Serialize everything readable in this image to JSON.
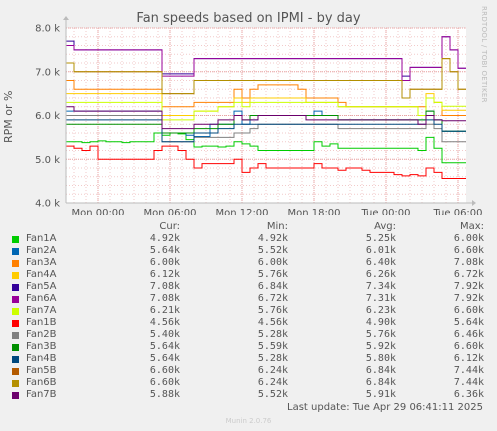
{
  "chart_data": {
    "type": "line",
    "title": "Fan speeds based on IPMI - by day",
    "ylabel": "RPM or %",
    "ylim": [
      4000,
      8000
    ],
    "y_ticks": [
      "4.0 k",
      "5.0 k",
      "6.0 k",
      "7.0 k",
      "8.0 k"
    ],
    "x_ticks": [
      "Mon 00:00",
      "Mon 06:00",
      "Mon 12:00",
      "Mon 18:00",
      "Tue 00:00",
      "Tue 06:00"
    ],
    "watermark": "RRDTOOL / TOBI OETIKER",
    "columns": [
      "Cur:",
      "Min:",
      "Avg:",
      "Max:"
    ],
    "series": [
      {
        "name": "Fan1A",
        "color": "#00cc00",
        "cur": "4.92k",
        "min": "4.92k",
        "avg": "5.25k",
        "max": "6.00k",
        "values": [
          5.4,
          5.4,
          5.38,
          5.4,
          5.42,
          5.4,
          5.4,
          5.38,
          5.4,
          5.4,
          5.4,
          5.6,
          5.55,
          5.6,
          5.58,
          5.45,
          5.28,
          5.3,
          5.3,
          5.28,
          5.3,
          5.4,
          5.35,
          5.3,
          5.2,
          5.2,
          5.2,
          5.2,
          5.2,
          5.2,
          5.2,
          5.4,
          5.3,
          5.35,
          5.25,
          5.25,
          5.25,
          5.25,
          5.25,
          5.25,
          5.25,
          5.25,
          5.25,
          5.25,
          5.2,
          5.5,
          5.25,
          4.92,
          4.92,
          4.92,
          4.92
        ]
      },
      {
        "name": "Fan2A",
        "color": "#0066b3",
        "cur": "5.64k",
        "min": "5.52k",
        "avg": "6.01k",
        "max": "6.60k",
        "values": [
          6.1,
          6.1,
          6.1,
          6.1,
          6.1,
          6.1,
          6.1,
          6.1,
          6.1,
          6.1,
          6.1,
          6.1,
          5.6,
          5.6,
          5.6,
          5.55,
          5.52,
          5.52,
          5.8,
          5.8,
          5.8,
          6.1,
          5.8,
          5.9,
          6.0,
          6.0,
          6.0,
          6.0,
          6.0,
          6.0,
          6.0,
          6.1,
          6.0,
          6.0,
          5.9,
          5.9,
          5.9,
          5.9,
          5.9,
          5.9,
          5.9,
          5.9,
          5.9,
          5.9,
          5.9,
          6.1,
          5.9,
          5.64,
          5.64,
          5.64,
          5.64
        ]
      },
      {
        "name": "Fan3A",
        "color": "#ff8000",
        "cur": "6.00k",
        "min": "6.00k",
        "avg": "6.40k",
        "max": "7.08k",
        "values": [
          6.8,
          6.6,
          6.6,
          6.6,
          6.6,
          6.6,
          6.6,
          6.6,
          6.6,
          6.6,
          6.6,
          6.6,
          6.2,
          6.2,
          6.2,
          6.2,
          6.3,
          6.3,
          6.3,
          6.3,
          6.3,
          6.6,
          6.4,
          6.6,
          6.7,
          6.7,
          6.7,
          6.7,
          6.7,
          6.6,
          6.4,
          6.4,
          6.4,
          6.4,
          6.3,
          6.2,
          6.2,
          6.2,
          6.2,
          6.2,
          6.2,
          6.2,
          6.2,
          6.2,
          6.2,
          6.4,
          6.3,
          6.0,
          6.0,
          6.0,
          6.0
        ]
      },
      {
        "name": "Fan4A",
        "color": "#ffcc00",
        "cur": "6.12k",
        "min": "5.76k",
        "avg": "6.26k",
        "max": "6.72k",
        "values": [
          6.5,
          6.5,
          6.5,
          6.5,
          6.5,
          6.5,
          6.5,
          6.5,
          6.5,
          6.5,
          6.5,
          6.5,
          6.0,
          6.0,
          6.0,
          6.0,
          6.1,
          6.1,
          6.1,
          6.2,
          6.2,
          6.4,
          6.3,
          6.4,
          6.4,
          6.4,
          6.4,
          6.4,
          6.4,
          6.4,
          6.3,
          6.3,
          6.3,
          6.3,
          6.2,
          6.2,
          6.2,
          6.2,
          6.2,
          6.2,
          6.2,
          6.2,
          6.2,
          6.2,
          6.0,
          6.5,
          6.3,
          6.12,
          6.12,
          6.12,
          6.12
        ]
      },
      {
        "name": "Fan5A",
        "color": "#330099",
        "cur": "7.08k",
        "min": "6.84k",
        "avg": "7.34k",
        "max": "7.92k",
        "values": [
          7.7,
          7.5,
          7.5,
          7.5,
          7.5,
          7.5,
          7.5,
          7.5,
          7.5,
          7.5,
          7.5,
          7.5,
          6.95,
          6.95,
          6.95,
          6.95,
          7.3,
          7.3,
          7.3,
          7.3,
          7.3,
          7.3,
          7.3,
          7.3,
          7.3,
          7.3,
          7.3,
          7.3,
          7.3,
          7.3,
          7.3,
          7.3,
          7.3,
          7.3,
          7.3,
          7.3,
          7.3,
          7.3,
          7.3,
          7.3,
          7.3,
          7.3,
          6.9,
          7.1,
          7.1,
          7.1,
          7.1,
          7.8,
          7.5,
          7.08,
          7.08
        ]
      },
      {
        "name": "Fan6A",
        "color": "#990099",
        "cur": "7.08k",
        "min": "6.72k",
        "avg": "7.31k",
        "max": "7.92k",
        "values": [
          7.6,
          7.5,
          7.5,
          7.5,
          7.5,
          7.5,
          7.5,
          7.5,
          7.5,
          7.5,
          7.5,
          7.5,
          6.9,
          6.9,
          6.9,
          6.9,
          7.3,
          7.3,
          7.3,
          7.3,
          7.3,
          7.3,
          7.3,
          7.3,
          7.3,
          7.3,
          7.3,
          7.3,
          7.3,
          7.3,
          7.3,
          7.3,
          7.3,
          7.3,
          7.3,
          7.3,
          7.3,
          7.3,
          7.3,
          7.3,
          7.3,
          7.3,
          6.8,
          7.1,
          7.1,
          7.1,
          7.1,
          7.8,
          7.5,
          7.08,
          7.08
        ]
      },
      {
        "name": "Fan7A",
        "color": "#ccff00",
        "cur": "6.21k",
        "min": "5.76k",
        "avg": "6.23k",
        "max": "6.60k",
        "values": [
          6.3,
          6.3,
          6.3,
          6.3,
          6.3,
          6.3,
          6.3,
          6.3,
          6.3,
          6.3,
          6.3,
          6.3,
          5.9,
          5.9,
          5.9,
          5.9,
          6.1,
          6.1,
          6.1,
          6.2,
          6.2,
          6.3,
          6.2,
          6.3,
          6.3,
          6.3,
          6.3,
          6.3,
          6.3,
          6.3,
          6.3,
          6.3,
          6.3,
          6.3,
          6.2,
          6.2,
          6.2,
          6.2,
          6.2,
          6.2,
          6.2,
          6.2,
          6.2,
          6.2,
          6.0,
          6.4,
          6.3,
          6.21,
          6.21,
          6.21,
          6.21
        ]
      },
      {
        "name": "Fan1B",
        "color": "#ff0000",
        "cur": "4.56k",
        "min": "4.56k",
        "avg": "4.90k",
        "max": "5.64k",
        "values": [
          5.3,
          5.25,
          5.2,
          5.3,
          5.0,
          5.0,
          5.0,
          5.0,
          5.0,
          5.0,
          5.0,
          5.2,
          5.3,
          5.3,
          5.2,
          5.0,
          4.8,
          4.9,
          4.9,
          4.9,
          4.9,
          5.0,
          4.7,
          4.8,
          4.9,
          4.8,
          4.8,
          4.8,
          4.8,
          4.8,
          4.8,
          4.9,
          4.8,
          4.8,
          4.75,
          4.8,
          4.8,
          4.75,
          4.7,
          4.7,
          4.7,
          4.65,
          4.62,
          4.65,
          4.62,
          4.8,
          4.7,
          4.56,
          4.56,
          4.56,
          4.56
        ]
      },
      {
        "name": "Fan2B",
        "color": "#808080",
        "cur": "5.40k",
        "min": "5.28k",
        "avg": "5.76k",
        "max": "6.46k",
        "values": [
          6.0,
          6.0,
          6.0,
          6.0,
          6.0,
          6.0,
          6.0,
          6.0,
          6.0,
          6.0,
          6.0,
          6.0,
          5.4,
          5.4,
          5.4,
          5.4,
          5.5,
          5.5,
          5.5,
          5.5,
          5.5,
          5.6,
          5.6,
          5.7,
          5.8,
          5.8,
          5.8,
          5.8,
          5.8,
          5.8,
          5.8,
          5.8,
          5.8,
          5.8,
          5.7,
          5.7,
          5.7,
          5.7,
          5.7,
          5.7,
          5.7,
          5.7,
          5.7,
          5.7,
          5.7,
          5.8,
          5.7,
          5.4,
          5.4,
          5.4,
          5.4
        ]
      },
      {
        "name": "Fan3B",
        "color": "#008f00",
        "cur": "5.64k",
        "min": "5.59k",
        "avg": "5.92k",
        "max": "6.60k",
        "values": [
          5.8,
          5.8,
          5.8,
          5.8,
          5.8,
          5.8,
          5.8,
          5.8,
          5.8,
          5.8,
          5.8,
          5.8,
          5.6,
          5.6,
          5.6,
          5.6,
          5.7,
          5.7,
          5.7,
          5.8,
          5.8,
          6.0,
          5.9,
          6.0,
          6.0,
          6.0,
          6.0,
          6.0,
          6.0,
          6.0,
          6.0,
          6.0,
          6.0,
          6.0,
          5.9,
          5.9,
          5.9,
          5.9,
          5.9,
          5.9,
          5.9,
          5.9,
          5.9,
          5.9,
          5.9,
          6.1,
          5.9,
          5.64,
          5.64,
          5.64,
          5.64
        ]
      },
      {
        "name": "Fan4B",
        "color": "#00487d",
        "cur": "5.64k",
        "min": "5.28k",
        "avg": "5.80k",
        "max": "6.12k",
        "values": [
          5.9,
          5.9,
          5.9,
          5.9,
          5.9,
          5.9,
          5.9,
          5.9,
          5.9,
          5.9,
          5.9,
          5.9,
          5.4,
          5.4,
          5.4,
          5.4,
          5.6,
          5.6,
          5.6,
          5.7,
          5.7,
          5.8,
          5.8,
          5.8,
          5.8,
          5.8,
          5.8,
          5.8,
          5.8,
          5.8,
          5.8,
          5.8,
          5.8,
          5.8,
          5.8,
          5.8,
          5.8,
          5.8,
          5.8,
          5.8,
          5.8,
          5.8,
          5.8,
          5.8,
          5.8,
          5.9,
          5.8,
          5.64,
          5.64,
          5.64,
          5.64
        ]
      },
      {
        "name": "Fan5B",
        "color": "#b35a00",
        "cur": "6.60k",
        "min": "6.24k",
        "avg": "6.84k",
        "max": "7.44k",
        "values": [
          7.2,
          7.0,
          7.0,
          7.0,
          7.0,
          7.0,
          7.0,
          7.0,
          7.0,
          7.0,
          7.0,
          7.0,
          6.5,
          6.5,
          6.5,
          6.5,
          6.8,
          6.8,
          6.8,
          6.8,
          6.8,
          6.8,
          6.8,
          6.8,
          6.8,
          6.8,
          6.8,
          6.8,
          6.8,
          6.8,
          6.8,
          6.8,
          6.8,
          6.8,
          6.8,
          6.8,
          6.8,
          6.8,
          6.8,
          6.8,
          6.8,
          6.8,
          6.4,
          6.6,
          6.6,
          6.6,
          6.6,
          7.3,
          7.0,
          6.6,
          6.6
        ]
      },
      {
        "name": "Fan6B",
        "color": "#b38f00",
        "cur": "6.60k",
        "min": "6.24k",
        "avg": "6.84k",
        "max": "7.44k",
        "values": [
          7.2,
          7.0,
          7.0,
          7.0,
          7.0,
          7.0,
          7.0,
          7.0,
          7.0,
          7.0,
          7.0,
          7.0,
          6.5,
          6.5,
          6.5,
          6.5,
          6.8,
          6.8,
          6.8,
          6.8,
          6.8,
          6.8,
          6.8,
          6.8,
          6.8,
          6.8,
          6.8,
          6.8,
          6.8,
          6.8,
          6.8,
          6.8,
          6.8,
          6.8,
          6.8,
          6.8,
          6.8,
          6.8,
          6.8,
          6.8,
          6.8,
          6.8,
          6.4,
          6.6,
          6.6,
          6.6,
          6.6,
          7.3,
          7.0,
          6.6,
          6.6
        ]
      },
      {
        "name": "Fan7B",
        "color": "#6b006b",
        "cur": "5.88k",
        "min": "5.52k",
        "avg": "5.91k",
        "max": "6.36k",
        "values": [
          6.2,
          6.1,
          6.1,
          6.1,
          6.1,
          6.1,
          6.1,
          6.1,
          6.1,
          6.1,
          6.1,
          6.1,
          5.7,
          5.7,
          5.7,
          5.7,
          5.8,
          5.8,
          5.8,
          5.9,
          5.9,
          6.0,
          5.9,
          5.9,
          6.0,
          6.0,
          6.0,
          6.0,
          6.0,
          6.0,
          5.9,
          5.9,
          5.9,
          5.9,
          5.9,
          5.9,
          5.9,
          5.9,
          5.9,
          5.9,
          5.9,
          5.9,
          5.9,
          5.9,
          5.8,
          6.0,
          5.9,
          5.88,
          5.88,
          5.88,
          5.88
        ]
      }
    ]
  },
  "footer": {
    "last_update": "Last update: Tue Apr 29 06:41:11 2025",
    "munin": "Munin 2.0.76"
  }
}
